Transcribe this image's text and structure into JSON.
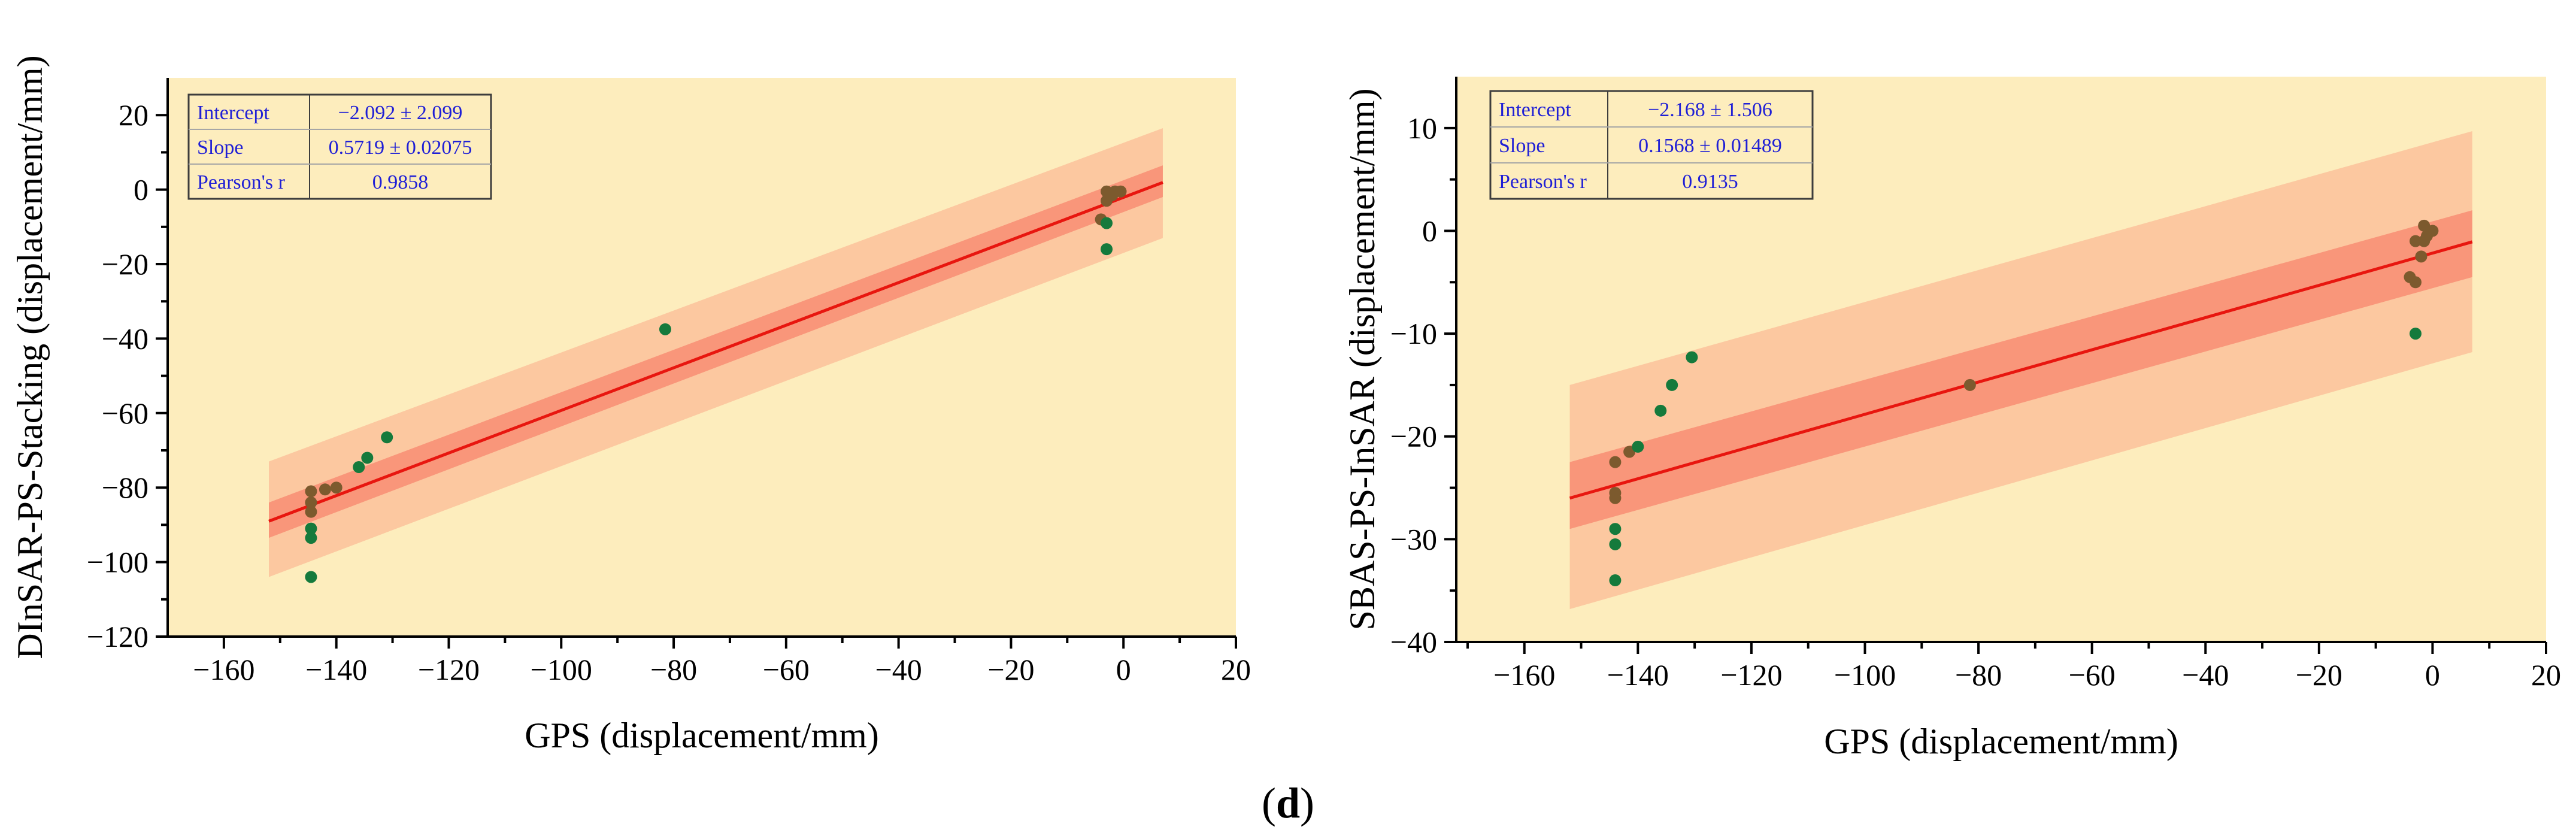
{
  "figure": {
    "panel_label_open": "(",
    "panel_label_letter": "d",
    "panel_label_close": ")"
  },
  "colors": {
    "plot_bg": "#fdedbd",
    "band_prediction": "#fcc8a0",
    "band_confidence": "#f9967a",
    "fit_line": "#e8160f",
    "point_green": "#157a3c",
    "point_brown": "#7c5a2e",
    "table_border": "#3d3d3d",
    "table_text": "#1f1fd6"
  },
  "chart_data": [
    {
      "type": "scatter",
      "title": "",
      "xlabel": "GPS (displacement/mm)",
      "ylabel": "DInSAR-PS-Stacking (displacement/mm)",
      "xlim": [
        -170,
        20
      ],
      "ylim": [
        -120,
        30
      ],
      "xticks": [
        -160,
        -140,
        -120,
        -100,
        -80,
        -60,
        -40,
        -20,
        0,
        20
      ],
      "xtick_labels": [
        "−160",
        "−140",
        "−120",
        "−100",
        "−80",
        "−60",
        "−40",
        "−20",
        "0",
        "20"
      ],
      "yticks": [
        20,
        0,
        -20,
        -40,
        -60,
        -80,
        -100,
        -120
      ],
      "ytick_labels": [
        "20",
        "0",
        "−20",
        "−40",
        "−60",
        "−80",
        "−100",
        "−120"
      ],
      "fit": {
        "intercept": -2.092,
        "slope": 0.5719,
        "x_range": [
          -152,
          7
        ]
      },
      "confidence_band": {
        "upper": [
          -84,
          6.5
        ],
        "lower": [
          -93.5,
          -2
        ]
      },
      "prediction_band": {
        "upper": [
          -73,
          16.5
        ],
        "lower": [
          -104,
          -13
        ]
      },
      "stats": {
        "rows": [
          {
            "label": "Intercept",
            "value": "−2.092 ± 2.099"
          },
          {
            "label": "Slope",
            "value": "0.5719 ± 0.02075"
          },
          {
            "label": "Pearson's r",
            "value": "0.9858"
          }
        ]
      },
      "points": [
        {
          "x": -144.5,
          "y": -81,
          "c": "brown"
        },
        {
          "x": -144.5,
          "y": -84,
          "c": "brown"
        },
        {
          "x": -144.5,
          "y": -86.5,
          "c": "brown"
        },
        {
          "x": -144.5,
          "y": -91,
          "c": "green"
        },
        {
          "x": -144.5,
          "y": -93.5,
          "c": "green"
        },
        {
          "x": -144.5,
          "y": -104,
          "c": "green"
        },
        {
          "x": -142,
          "y": -80.5,
          "c": "brown"
        },
        {
          "x": -140,
          "y": -80,
          "c": "brown"
        },
        {
          "x": -136,
          "y": -74.5,
          "c": "green"
        },
        {
          "x": -134.5,
          "y": -72,
          "c": "green"
        },
        {
          "x": -131,
          "y": -66.5,
          "c": "green"
        },
        {
          "x": -81.5,
          "y": -37.5,
          "c": "green"
        },
        {
          "x": -4,
          "y": -8,
          "c": "brown"
        },
        {
          "x": -3,
          "y": -9,
          "c": "green"
        },
        {
          "x": -3,
          "y": -16,
          "c": "green"
        },
        {
          "x": -3,
          "y": -3,
          "c": "brown"
        },
        {
          "x": -3,
          "y": -0.5,
          "c": "brown"
        },
        {
          "x": -2,
          "y": -1.5,
          "c": "brown"
        },
        {
          "x": -1.5,
          "y": -0.5,
          "c": "brown"
        },
        {
          "x": -0.5,
          "y": -0.5,
          "c": "brown"
        }
      ]
    },
    {
      "type": "scatter",
      "title": "",
      "xlabel": "GPS (displacement/mm)",
      "ylabel": "SBAS-PS-InSAR (displacement/mm)",
      "xlim": [
        -172,
        20
      ],
      "ylim": [
        -40,
        15
      ],
      "xticks": [
        -160,
        -140,
        -120,
        -100,
        -80,
        -60,
        -40,
        -20,
        0,
        20
      ],
      "xtick_labels": [
        "−160",
        "−140",
        "−120",
        "−100",
        "−80",
        "−60",
        "−40",
        "−20",
        "0",
        "20"
      ],
      "yticks": [
        10,
        0,
        -10,
        -20,
        -30,
        -40
      ],
      "ytick_labels": [
        "10",
        "0",
        "−10",
        "−20",
        "−30",
        "−40"
      ],
      "fit": {
        "intercept": -2.168,
        "slope": 0.1568,
        "x_range": [
          -152,
          7
        ]
      },
      "confidence_band": {
        "upper": [
          -22.5,
          2
        ],
        "lower": [
          -29,
          -4.5
        ]
      },
      "prediction_band": {
        "upper": [
          -15,
          9.7
        ],
        "lower": [
          -36.8,
          -11.8
        ]
      },
      "stats": {
        "rows": [
          {
            "label": "Intercept",
            "value": "−2.168 ± 1.506"
          },
          {
            "label": "Slope",
            "value": "0.1568 ± 0.01489"
          },
          {
            "label": "Pearson's r",
            "value": "0.9135"
          }
        ]
      },
      "points": [
        {
          "x": -144,
          "y": -22.5,
          "c": "brown"
        },
        {
          "x": -144,
          "y": -25.5,
          "c": "brown"
        },
        {
          "x": -144,
          "y": -26,
          "c": "brown"
        },
        {
          "x": -144,
          "y": -29,
          "c": "green"
        },
        {
          "x": -144,
          "y": -30.5,
          "c": "green"
        },
        {
          "x": -144,
          "y": -34,
          "c": "green"
        },
        {
          "x": -141.5,
          "y": -21.5,
          "c": "brown"
        },
        {
          "x": -140,
          "y": -21,
          "c": "green"
        },
        {
          "x": -136,
          "y": -17.5,
          "c": "green"
        },
        {
          "x": -134,
          "y": -15,
          "c": "green"
        },
        {
          "x": -130.5,
          "y": -12.3,
          "c": "green"
        },
        {
          "x": -81.5,
          "y": -15,
          "c": "brown"
        },
        {
          "x": -4,
          "y": -4.5,
          "c": "brown"
        },
        {
          "x": -3,
          "y": -5,
          "c": "brown"
        },
        {
          "x": -3,
          "y": -10,
          "c": "green"
        },
        {
          "x": -3,
          "y": -1,
          "c": "brown"
        },
        {
          "x": -2,
          "y": -2.5,
          "c": "brown"
        },
        {
          "x": -1.5,
          "y": -1,
          "c": "brown"
        },
        {
          "x": -1.5,
          "y": 0.5,
          "c": "brown"
        },
        {
          "x": -1,
          "y": -0.5,
          "c": "brown"
        },
        {
          "x": 0,
          "y": 0,
          "c": "brown"
        }
      ]
    }
  ]
}
